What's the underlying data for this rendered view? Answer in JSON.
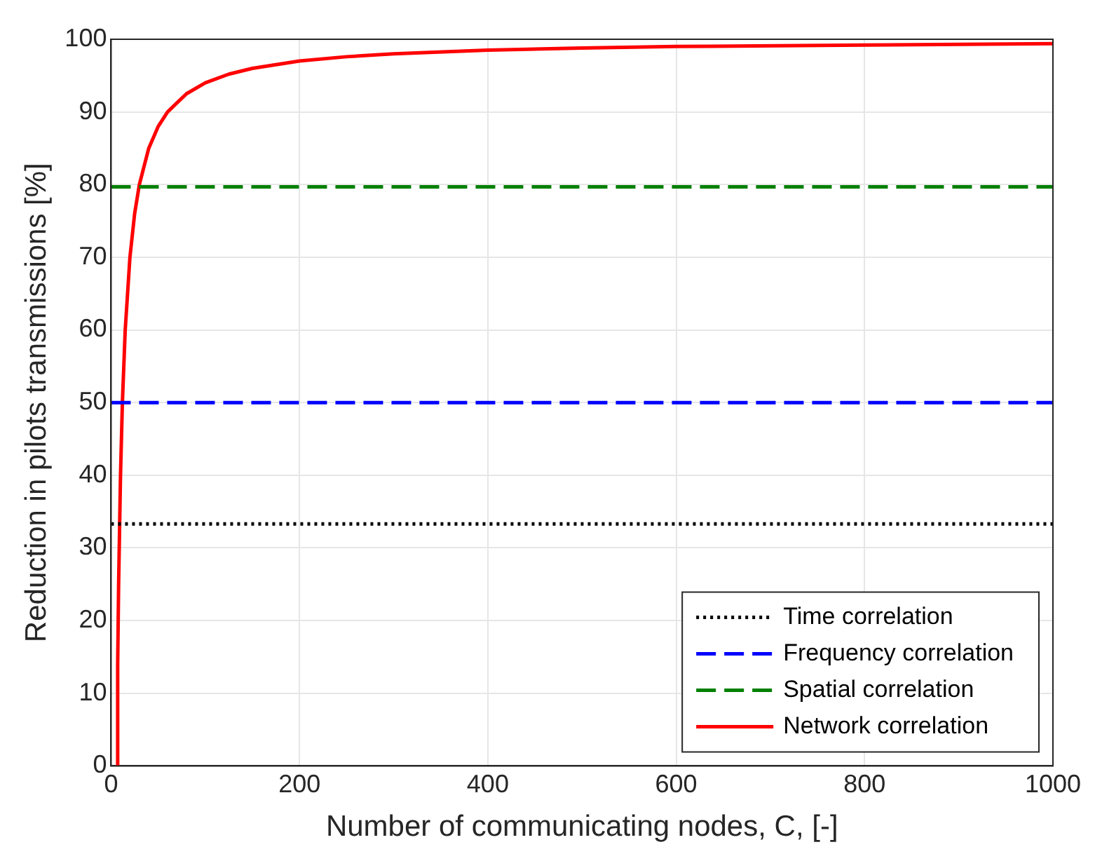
{
  "chart_data": {
    "type": "line",
    "xlabel": "Number of communicating nodes, C, [-]",
    "ylabel": "Reduction in pilots transmissions [%]",
    "xlim": [
      0,
      1000
    ],
    "xticks": [
      0,
      200,
      400,
      600,
      800,
      1000
    ],
    "ylim": [
      0,
      100
    ],
    "yticks": [
      0,
      10,
      20,
      30,
      40,
      50,
      60,
      70,
      80,
      90,
      100
    ],
    "grid": true,
    "legend": "bottom right",
    "marker": "none",
    "series": [
      {
        "name": "Time correlation",
        "color": "#000000",
        "line_style": "dotted",
        "x": [
          0,
          1000
        ],
        "values": [
          33.3,
          33.3
        ]
      },
      {
        "name": "Frequency correlation",
        "color": "#0000ff",
        "line_style": "dashed",
        "x": [
          0,
          1000
        ],
        "values": [
          50,
          50
        ]
      },
      {
        "name": "Spatial correlation",
        "color": "#008000",
        "line_style": "dashed",
        "x": [
          0,
          1000
        ],
        "values": [
          79.7,
          79.7
        ]
      },
      {
        "name": "Network correlation",
        "color": "#ff0000",
        "line_style": "solid",
        "x": [
          6,
          7,
          8,
          10,
          12,
          15,
          20,
          25,
          30,
          40,
          50,
          60,
          80,
          100,
          125,
          150,
          200,
          250,
          300,
          400,
          500,
          600,
          800,
          1000
        ],
        "values": [
          0,
          14,
          25,
          40,
          50,
          60,
          70,
          76,
          80,
          85,
          88,
          90,
          92.5,
          94,
          95.2,
          96,
          97,
          97.6,
          98,
          98.5,
          98.8,
          99,
          99.2,
          99.4
        ]
      }
    ]
  }
}
